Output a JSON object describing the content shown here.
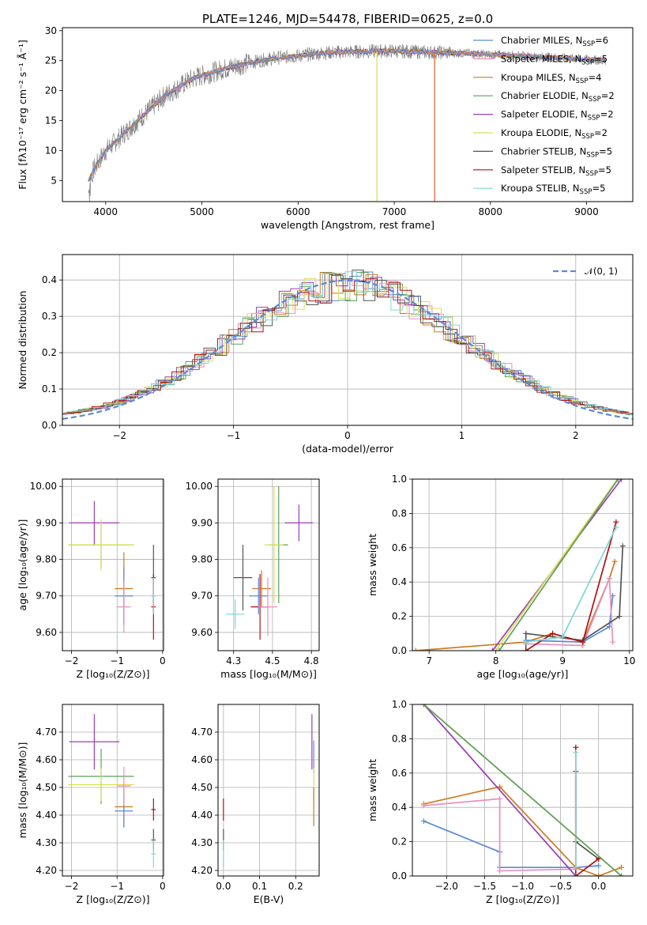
{
  "title": "PLATE=1246, MJD=54478, FIBERID=0625, z=0.0",
  "chart_data": [
    {
      "id": "spectrum",
      "type": "line",
      "xlabel": "wavelength [Angstrom, rest frame]",
      "ylabel": "Flux [fλ10⁻¹⁷ erg cm⁻² s⁻¹ Å⁻¹]",
      "xlim": [
        3550,
        9480
      ],
      "ylim": [
        1.5,
        30.5
      ],
      "xticks": [
        4000,
        5000,
        6000,
        7000,
        8000,
        9000
      ],
      "yticks": [
        5,
        10,
        15,
        20,
        25,
        30
      ],
      "grid": false,
      "legend_position": "right",
      "data_curve": {
        "x": [
          3820,
          3900,
          4000,
          4100,
          4200,
          4300,
          4400,
          4500,
          4600,
          4700,
          4800,
          4900,
          5000,
          5200,
          5400,
          5600,
          5800,
          6000,
          6200,
          6400,
          6600,
          6800,
          7000,
          7200,
          7400,
          7600,
          7800,
          8000,
          8200,
          8400,
          8600,
          8800,
          9000,
          9200
        ],
        "y": [
          5.0,
          7.5,
          10.0,
          11.5,
          13.0,
          14.5,
          16.0,
          17.5,
          19.0,
          20.0,
          21.0,
          22.0,
          22.5,
          23.5,
          24.3,
          25.0,
          25.5,
          25.8,
          26.2,
          26.4,
          26.5,
          26.6,
          26.6,
          26.5,
          26.4,
          26.3,
          26.2,
          26.0,
          25.9,
          25.7,
          25.6,
          25.4,
          25.2,
          25.0
        ]
      },
      "legend": [
        {
          "label": "Chabrier MILES, N",
          "sub": "SSP",
          "tail": "=6",
          "color": "#5b8bd6"
        },
        {
          "label": "Salpeter MILES, N",
          "sub": "SSP",
          "tail": "=5",
          "color": "#e88fbd"
        },
        {
          "label": "Kroupa MILES, N",
          "sub": "SSP",
          "tail": "=4",
          "color": "#cc7a1e"
        },
        {
          "label": "Chabrier ELODIE, N",
          "sub": "SSP",
          "tail": "=2",
          "color": "#5e9f5e"
        },
        {
          "label": "Salpeter ELODIE, N",
          "sub": "SSP",
          "tail": "=2",
          "color": "#9a3fb2"
        },
        {
          "label": "Kroupa ELODIE, N",
          "sub": "SSP",
          "tail": "=2",
          "color": "#d8e050"
        },
        {
          "label": "Chabrier STELIB, N",
          "sub": "SSP",
          "tail": "=5",
          "color": "#555555"
        },
        {
          "label": "Salpeter STELIB, N",
          "sub": "SSP",
          "tail": "=5",
          "color": "#b01010"
        },
        {
          "label": "Kroupa STELIB, N",
          "sub": "SSP",
          "tail": "=5",
          "color": "#7fd6d8"
        }
      ],
      "dropouts": [
        {
          "x": 6820,
          "color": "#d8e050"
        },
        {
          "x": 7420,
          "color": "#d86030"
        }
      ]
    },
    {
      "id": "residuals",
      "type": "line",
      "xlabel": "(data-model)/error",
      "ylabel": "Normed distribution",
      "xlim": [
        -2.5,
        2.5
      ],
      "ylim": [
        0,
        0.47
      ],
      "xticks": [
        -2,
        -1,
        0,
        1,
        2
      ],
      "yticks": [
        0.0,
        0.1,
        0.2,
        0.3,
        0.4
      ],
      "grid": true,
      "legend": [
        {
          "label": "𝒩(0, 1)",
          "color": "#5b8bd6",
          "style": "dashed"
        }
      ],
      "legend_position": "upper right"
    },
    {
      "id": "age_vs_Z",
      "type": "scatter",
      "xlabel": "Z [log₁₀(Z/Z⊙)]",
      "ylabel": "age  [log₁₀(age/yr)]",
      "xlim": [
        -2.2,
        0.02
      ],
      "ylim": [
        9.55,
        10.02
      ],
      "xticks": [
        -2,
        -1,
        0
      ],
      "yticks": [
        9.6,
        9.7,
        9.8,
        9.9,
        10.0
      ],
      "grid": true,
      "points": [
        {
          "x": -1.5,
          "y": 9.9,
          "xerr": 0.55,
          "yerr": 0.06,
          "color": "#9a3fb2"
        },
        {
          "x": -1.35,
          "y": 9.84,
          "xerr": 0.72,
          "yerr": 0.06,
          "color": "#5e9f5e"
        },
        {
          "x": -1.35,
          "y": 9.84,
          "xerr": 0.72,
          "yerr": 0.07,
          "color": "#d8e050"
        },
        {
          "x": -0.85,
          "y": 9.72,
          "xerr": 0.2,
          "yerr": 0.1,
          "color": "#cc7a1e"
        },
        {
          "x": -0.85,
          "y": 9.7,
          "xerr": 0.2,
          "yerr": 0.08,
          "color": "#5b8bd6"
        },
        {
          "x": -0.85,
          "y": 9.67,
          "xerr": 0.15,
          "yerr": 0.07,
          "color": "#e88fbd"
        },
        {
          "x": -0.2,
          "y": 9.75,
          "xerr": 0.05,
          "yerr": 0.09,
          "color": "#555555"
        },
        {
          "x": -0.2,
          "y": 9.67,
          "xerr": 0.05,
          "yerr": 0.09,
          "color": "#b01010"
        },
        {
          "x": -0.2,
          "y": 9.7,
          "xerr": 0.05,
          "yerr": 0.05,
          "color": "#7fd6d8"
        }
      ]
    },
    {
      "id": "age_vs_mass",
      "type": "scatter",
      "xlabel": "mass [log₁₀(M/M⊙)]",
      "ylabel": "",
      "xlim": [
        4.15,
        4.8
      ],
      "ylim": [
        9.55,
        10.02
      ],
      "xticks": [
        4.25,
        4.5,
        4.75
      ],
      "yticks": [
        9.6,
        9.7,
        9.8,
        9.9,
        10.0
      ],
      "grid": true,
      "points": [
        {
          "x": 4.31,
          "y": 9.75,
          "xerr": 0.06,
          "yerr": 0.09,
          "color": "#555555"
        },
        {
          "x": 4.26,
          "y": 9.65,
          "xerr": 0.06,
          "yerr": 0.04,
          "color": "#7fd6d8"
        },
        {
          "x": 4.42,
          "y": 9.67,
          "xerr": 0.06,
          "yerr": 0.09,
          "color": "#b01010"
        },
        {
          "x": 4.43,
          "y": 9.72,
          "xerr": 0.06,
          "yerr": 0.05,
          "color": "#cc7a1e"
        },
        {
          "x": 4.41,
          "y": 9.7,
          "xerr": 0.06,
          "yerr": 0.05,
          "color": "#5b8bd6"
        },
        {
          "x": 4.47,
          "y": 9.67,
          "xerr": 0.06,
          "yerr": 0.08,
          "color": "#e88fbd"
        },
        {
          "x": 4.54,
          "y": 9.84,
          "xerr": 0.06,
          "yerr": 0.16,
          "color": "#5e9f5e"
        },
        {
          "x": 4.51,
          "y": 9.84,
          "xerr": 0.06,
          "yerr": 0.16,
          "color": "#d8e050"
        },
        {
          "x": 4.67,
          "y": 9.9,
          "xerr": 0.09,
          "yerr": 0.05,
          "color": "#9a3fb2"
        }
      ]
    },
    {
      "id": "weight_vs_age",
      "type": "line",
      "xlabel": "age  [log₁₀(age/yr)]",
      "ylabel": "mass weight",
      "xlim": [
        6.75,
        10.05
      ],
      "ylim": [
        0,
        1
      ],
      "xticks": [
        7,
        8,
        9,
        10
      ],
      "yticks": [
        0.0,
        0.2,
        0.4,
        0.6,
        0.8,
        1.0
      ],
      "grid": true,
      "series": [
        {
          "color": "#cc7a1e",
          "x": [
            6.8,
            8.45,
            8.85,
            9.3,
            9.7,
            9.78
          ],
          "y": [
            0.0,
            0.05,
            0.1,
            0.05,
            0.42,
            0.52
          ]
        },
        {
          "color": "#5b8bd6",
          "x": [
            8.45,
            9.3,
            9.7,
            9.75
          ],
          "y": [
            0.06,
            0.05,
            0.14,
            0.32
          ]
        },
        {
          "color": "#e88fbd",
          "x": [
            8.45,
            9.3,
            9.7,
            9.75
          ],
          "y": [
            0.04,
            0.03,
            0.42,
            0.05
          ]
        },
        {
          "color": "#555555",
          "x": [
            8.45,
            8.45,
            9.3,
            9.85,
            9.9
          ],
          "y": [
            0.0,
            0.1,
            0.06,
            0.2,
            0.61
          ]
        },
        {
          "color": "#b01010",
          "x": [
            8.45,
            8.85,
            9.3,
            9.8
          ],
          "y": [
            0.0,
            0.1,
            0.05,
            0.75
          ]
        },
        {
          "color": "#7fd6d8",
          "x": [
            8.45,
            9.0,
            9.8
          ],
          "y": [
            0.05,
            0.08,
            0.72
          ]
        },
        {
          "color": "#9a3fb2",
          "x": [
            7.95,
            9.88
          ],
          "y": [
            0.0,
            1.0
          ]
        },
        {
          "color": "#d8e050",
          "x": [
            8.0,
            9.82
          ],
          "y": [
            0.0,
            1.0
          ]
        },
        {
          "color": "#5e9f5e",
          "x": [
            8.05,
            9.83
          ],
          "y": [
            0.0,
            1.0
          ]
        }
      ]
    },
    {
      "id": "mass_vs_Z",
      "type": "scatter",
      "xlabel": "Z [log₁₀(Z/Z⊙)]",
      "ylabel": "mass [log₁₀(M/M⊙)]",
      "xlim": [
        -2.2,
        0.02
      ],
      "ylim": [
        4.18,
        4.8
      ],
      "xticks": [
        -2,
        -1,
        0
      ],
      "yticks": [
        4.2,
        4.3,
        4.4,
        4.5,
        4.6,
        4.7
      ],
      "grid": true,
      "points": [
        {
          "x": -1.5,
          "y": 4.665,
          "xerr": 0.55,
          "yerr": 0.1,
          "color": "#9a3fb2"
        },
        {
          "x": -1.35,
          "y": 4.54,
          "xerr": 0.72,
          "yerr": 0.1,
          "color": "#5e9f5e"
        },
        {
          "x": -1.35,
          "y": 4.51,
          "xerr": 0.72,
          "yerr": 0.06,
          "color": "#d8e050"
        },
        {
          "x": -0.85,
          "y": 4.43,
          "xerr": 0.2,
          "yerr": 0.07,
          "color": "#cc7a1e"
        },
        {
          "x": -0.85,
          "y": 4.415,
          "xerr": 0.2,
          "yerr": 0.06,
          "color": "#5b8bd6"
        },
        {
          "x": -0.85,
          "y": 4.505,
          "xerr": 0.15,
          "yerr": 0.07,
          "color": "#e88fbd"
        },
        {
          "x": -0.2,
          "y": 4.42,
          "xerr": 0.05,
          "yerr": 0.04,
          "color": "#b01010"
        },
        {
          "x": -0.2,
          "y": 4.31,
          "xerr": 0.05,
          "yerr": 0.04,
          "color": "#555555"
        },
        {
          "x": -0.2,
          "y": 4.26,
          "xerr": 0.05,
          "yerr": 0.05,
          "color": "#7fd6d8"
        }
      ]
    },
    {
      "id": "mass_vs_ebv",
      "type": "scatter",
      "xlabel": "E(B-V)",
      "ylabel": "",
      "xlim": [
        -0.015,
        0.265
      ],
      "ylim": [
        4.18,
        4.8
      ],
      "xticks": [
        0.0,
        0.1,
        0.2
      ],
      "yticks": [
        4.2,
        4.3,
        4.4,
        4.5,
        4.6,
        4.7
      ],
      "grid": true,
      "points": [
        {
          "x": 0.0,
          "y": 4.42,
          "xerr": 0,
          "yerr": 0.04,
          "color": "#b01010"
        },
        {
          "x": 0.0,
          "y": 4.31,
          "xerr": 0,
          "yerr": 0.04,
          "color": "#555555"
        },
        {
          "x": 0.0,
          "y": 4.26,
          "xerr": 0,
          "yerr": 0.05,
          "color": "#7fd6d8"
        },
        {
          "x": 0.245,
          "y": 4.665,
          "xerr": 0,
          "yerr": 0.1,
          "color": "#9a3fb2"
        },
        {
          "x": 0.25,
          "y": 4.61,
          "xerr": 0,
          "yerr": 0.06,
          "color": "#5b8bd6"
        },
        {
          "x": 0.25,
          "y": 4.51,
          "xerr": 0,
          "yerr": 0.06,
          "color": "#d8e050"
        },
        {
          "x": 0.25,
          "y": 4.43,
          "xerr": 0,
          "yerr": 0.07,
          "color": "#cc7a1e"
        }
      ]
    },
    {
      "id": "weight_vs_Z",
      "type": "line",
      "xlabel": "Z [log₁₀(Z/Z⊙)]",
      "ylabel": "mass weight",
      "xlim": [
        -2.45,
        0.45
      ],
      "ylim": [
        0,
        1
      ],
      "xticks": [
        -2.0,
        -1.5,
        -1.0,
        -0.5,
        0.0
      ],
      "yticks": [
        0.0,
        0.2,
        0.4,
        0.6,
        0.8,
        1.0
      ],
      "grid": true,
      "series": [
        {
          "color": "#cc7a1e",
          "x": [
            -2.3,
            -1.3,
            -0.3,
            0.0,
            0.3
          ],
          "y": [
            0.42,
            0.52,
            0.05,
            0.0,
            0.05
          ]
        },
        {
          "color": "#5b8bd6",
          "x": [
            -2.3,
            -1.3,
            -1.3,
            -0.3,
            0.0
          ],
          "y": [
            0.32,
            0.14,
            0.05,
            0.05,
            0.06
          ]
        },
        {
          "color": "#e88fbd",
          "x": [
            -2.3,
            -1.3,
            -1.3,
            -0.3
          ],
          "y": [
            0.41,
            0.45,
            0.03,
            0.04
          ]
        },
        {
          "color": "#555555",
          "x": [
            -0.3,
            -0.3,
            0.0
          ],
          "y": [
            0.61,
            0.2,
            0.1
          ]
        },
        {
          "color": "#b01010",
          "x": [
            -0.3,
            -0.3,
            0.0
          ],
          "y": [
            0.75,
            0.0,
            0.1
          ]
        },
        {
          "color": "#7fd6d8",
          "x": [
            -0.3,
            -0.3
          ],
          "y": [
            0.72,
            0.05
          ]
        },
        {
          "color": "#9a3fb2",
          "x": [
            -2.3,
            -0.3
          ],
          "y": [
            1.0,
            0.0
          ]
        },
        {
          "color": "#d8e050",
          "x": [
            -2.3,
            0.3
          ],
          "y": [
            1.0,
            0.0
          ]
        },
        {
          "color": "#5e9f5e",
          "x": [
            -2.3,
            0.3
          ],
          "y": [
            1.0,
            0.0
          ]
        }
      ]
    }
  ]
}
